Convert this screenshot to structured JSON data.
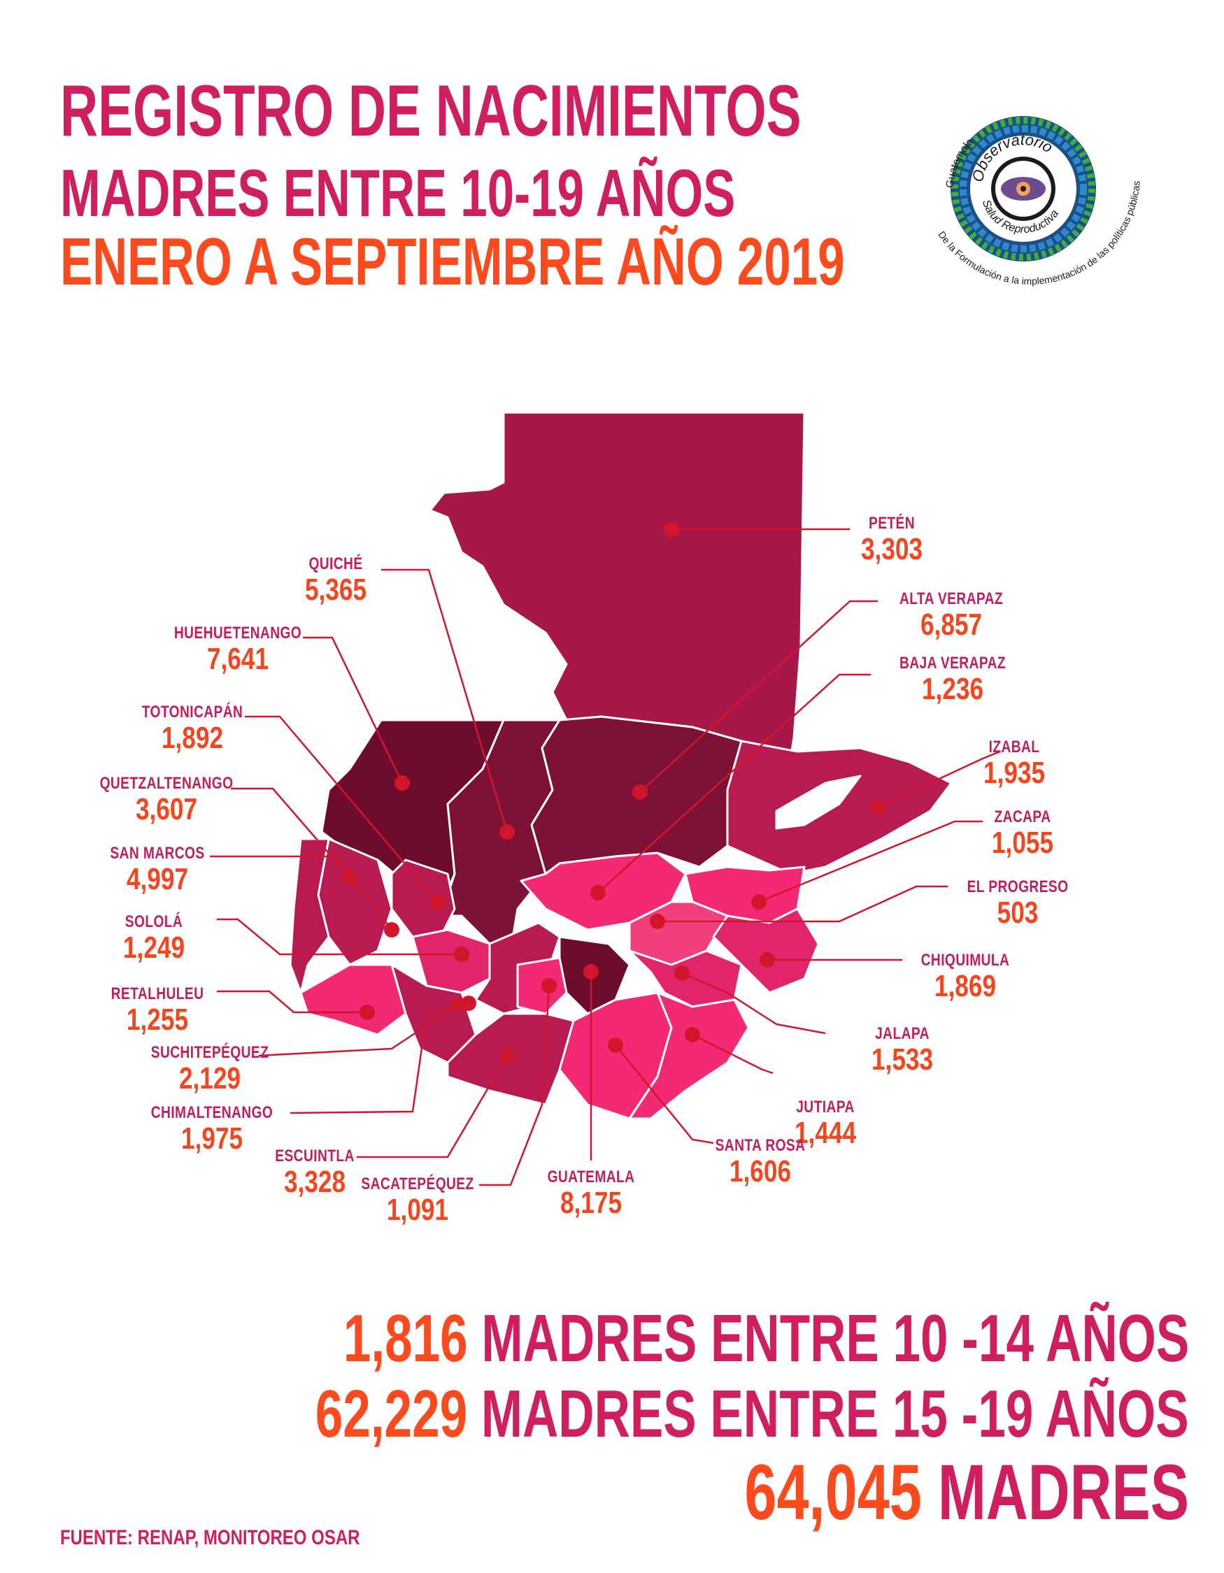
{
  "header": {
    "title_line1": "REGISTRO DE NACIMIENTOS",
    "title_line2": "MADRES ENTRE 10-19 AÑOS",
    "title_line3": "ENERO A SEPTIEMBRE AÑO 2019"
  },
  "logo": {
    "top_text": "Guatemala",
    "name_line1": "Observatorio",
    "name_line2": "Salud Reproductiva",
    "tagline": "De la Formulación a la implementación de las políticas públicas"
  },
  "colors": {
    "title_pink": "#cf1f5e",
    "title_orange": "#fa4a1e",
    "region_dark": "#6e0c2e",
    "region_maroon": "#7e1236",
    "region_crimson": "#a8174a",
    "region_mid": "#b81b52",
    "region_pink": "#e2256a",
    "region_bright": "#f32a73",
    "marker": "#d1152b",
    "leader": "#d1152b"
  },
  "map": {
    "departments": [
      {
        "name": "PETÉN",
        "value": "3,303"
      },
      {
        "name": "QUICHÉ",
        "value": "5,365"
      },
      {
        "name": "ALTA VERAPAZ",
        "value": "6,857"
      },
      {
        "name": "HUEHUETENANGO",
        "value": "7,641"
      },
      {
        "name": "BAJA VERAPAZ",
        "value": "1,236"
      },
      {
        "name": "TOTONICAPÁN",
        "value": "1,892"
      },
      {
        "name": "IZABAL",
        "value": "1,935"
      },
      {
        "name": "QUETZALTENANGO",
        "value": "3,607"
      },
      {
        "name": "ZACAPA",
        "value": "1,055"
      },
      {
        "name": "SAN MARCOS",
        "value": "4,997"
      },
      {
        "name": "EL PROGRESO",
        "value": "503"
      },
      {
        "name": "SOLOLÁ",
        "value": "1,249"
      },
      {
        "name": "CHIQUIMULA",
        "value": "1,869"
      },
      {
        "name": "RETALHULEU",
        "value": "1,255"
      },
      {
        "name": "JALAPA",
        "value": "1,533"
      },
      {
        "name": "SUCHITEPÉQUEZ",
        "value": "2,129"
      },
      {
        "name": "JUTIAPA",
        "value": "1,444"
      },
      {
        "name": "CHIMALTENANGO",
        "value": "1,975"
      },
      {
        "name": "SANTA ROSA",
        "value": "1,606"
      },
      {
        "name": "ESCUINTLA",
        "value": "3,328"
      },
      {
        "name": "SACATEPÉQUEZ",
        "value": "1,091"
      },
      {
        "name": "GUATEMALA",
        "value": "8,175"
      }
    ]
  },
  "summary": {
    "row1_number": "1,816",
    "row1_text": "MADRES ENTRE 10 -14 AÑOS",
    "row2_number": "62,229",
    "row2_text": "MADRES ENTRE 15 -19 AÑOS",
    "total_number": "64,045",
    "total_text": "MADRES"
  },
  "source": "FUENTE: RENAP, MONITOREO OSAR"
}
